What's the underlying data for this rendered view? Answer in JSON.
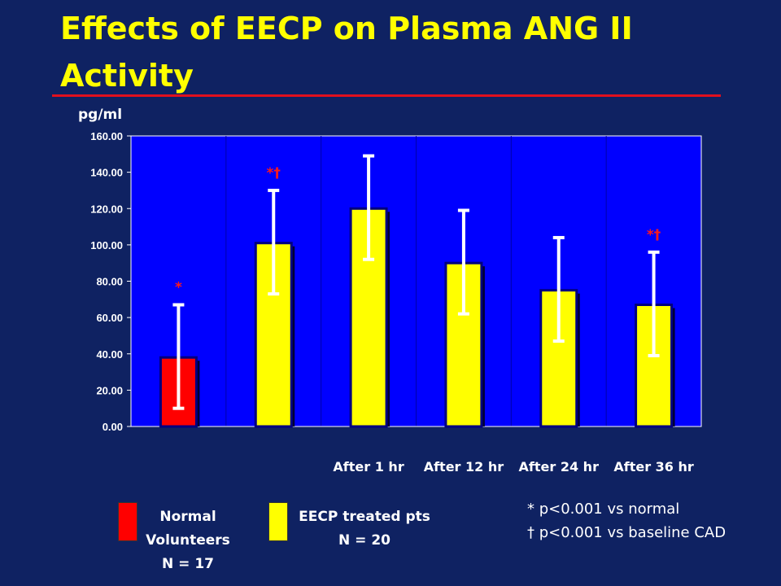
{
  "slide": {
    "title": "Effects of  EECP on Plasma ANG II Activity",
    "unit_label": "pg/ml"
  },
  "colors": {
    "background": "#0f2262",
    "plot_area": "#0000ff",
    "title": "#ffff00",
    "rule": "#e0101e",
    "normal_bar": "#ff0000",
    "eecp_bar": "#ffff00",
    "significance": "#ff1a1a"
  },
  "chart_data": {
    "type": "bar",
    "ylabel": "pg/ml",
    "ylim": [
      0,
      160
    ],
    "ytick_labels": [
      "0.00",
      "20.00",
      "40.00",
      "60.00",
      "80.00",
      "100.00",
      "120.00",
      "140.00",
      "160.00"
    ],
    "categories": [
      "",
      "",
      "After 1 hr",
      "After 12 hr",
      "After 24 hr",
      "After 36 hr"
    ],
    "values": [
      38,
      101,
      120,
      90,
      75,
      67
    ],
    "error_low": [
      10,
      73,
      92,
      62,
      47,
      39
    ],
    "error_high": [
      67,
      130,
      149,
      119,
      104,
      96
    ],
    "group": [
      "normal",
      "eecp",
      "eecp",
      "eecp",
      "eecp",
      "eecp"
    ],
    "significance": [
      "*",
      "*†",
      "",
      "",
      "",
      "*†"
    ],
    "grid": false,
    "legend_placement": "bottom"
  },
  "legend": {
    "normal": [
      "Normal",
      "Volunteers",
      "N = 17"
    ],
    "eecp": [
      "EECP treated pts",
      "N = 20"
    ]
  },
  "notes": [
    "* p<0.001 vs normal",
    "† p<0.001 vs baseline CAD"
  ]
}
